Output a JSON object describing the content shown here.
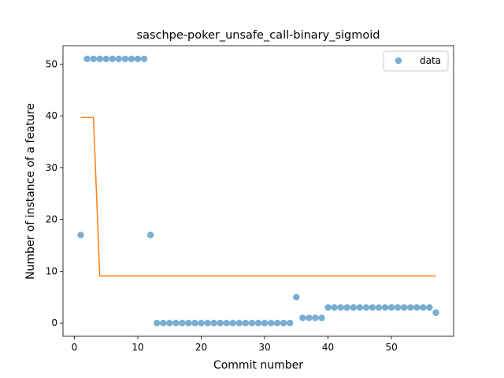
{
  "chart_data": {
    "type": "scatter",
    "title": "saschpe-poker_unsafe_call-binary_sigmoid",
    "xlabel": "Commit number",
    "ylabel": "Number of instance of a feature",
    "xlim": [
      -1.8,
      59.8
    ],
    "ylim": [
      -2.55,
      53.55
    ],
    "xticks": [
      0,
      10,
      20,
      30,
      40,
      50
    ],
    "yticks": [
      0,
      10,
      20,
      30,
      40,
      50
    ],
    "grid": false,
    "legend_position": "top-right",
    "series": [
      {
        "name": "data",
        "kind": "scatter",
        "color": "#1f77b4",
        "x": [
          1,
          2,
          3,
          4,
          5,
          6,
          7,
          8,
          9,
          10,
          11,
          12,
          13,
          14,
          15,
          16,
          17,
          18,
          19,
          20,
          21,
          22,
          23,
          24,
          25,
          26,
          27,
          28,
          29,
          30,
          31,
          32,
          33,
          34,
          35,
          36,
          37,
          38,
          39,
          40,
          41,
          42,
          43,
          44,
          45,
          46,
          47,
          48,
          49,
          50,
          51,
          52,
          53,
          54,
          55,
          56,
          57
        ],
        "y": [
          17,
          51,
          51,
          51,
          51,
          51,
          51,
          51,
          51,
          51,
          51,
          17,
          0,
          0,
          0,
          0,
          0,
          0,
          0,
          0,
          0,
          0,
          0,
          0,
          0,
          0,
          0,
          0,
          0,
          0,
          0,
          0,
          0,
          0,
          5,
          1,
          1,
          1,
          1,
          3,
          3,
          3,
          3,
          3,
          3,
          3,
          3,
          3,
          3,
          3,
          3,
          3,
          3,
          3,
          3,
          3,
          2
        ]
      },
      {
        "kind": "line",
        "color": "#ff7f0e",
        "x": [
          1,
          3,
          4,
          57
        ],
        "y": [
          39.7,
          39.7,
          9.1,
          9.1
        ]
      }
    ]
  }
}
